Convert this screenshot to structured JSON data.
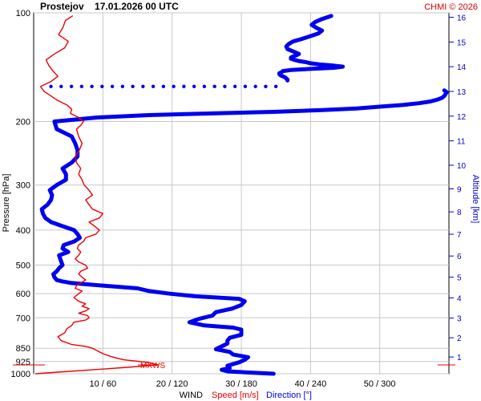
{
  "chart_data": {
    "type": "line",
    "title": "Prostejov    17.01.2026 00 UTC",
    "copyright": "CHMI © 2026",
    "ylabel_left": "Pressure [hPa]",
    "ylabel_right": "Altitude [km]",
    "xlabel_prefix": "WIND",
    "xlabel_speed": "Speed [m/s]",
    "xlabel_direction": "Direction [°]",
    "marker_label": "MXWS",
    "pressure_scale": "log",
    "pressure_range": [
      1000,
      100
    ],
    "pressure_ticks": [
      "100",
      "200",
      "300",
      "400",
      "500",
      "600",
      "700",
      "850",
      "925",
      "1000"
    ],
    "altitude_ticks": [
      "1",
      "2",
      "3",
      "4",
      "5",
      "6",
      "7",
      "8",
      "9",
      "10",
      "11",
      "12",
      "13",
      "14",
      "15",
      "16"
    ],
    "x_ticks": [
      "10 / 60",
      "20 / 120",
      "30 / 180",
      "40 / 240",
      "50 / 300"
    ],
    "speed_range": [
      0,
      60
    ],
    "direction_range": [
      0,
      360
    ],
    "grid": true,
    "colors": {
      "speed": "#ee0000",
      "direction": "#0000ee",
      "altitude_axis": "#0000cc",
      "copyright": "#cc0000",
      "grid": "#c8c8c8"
    },
    "series": [
      {
        "name": "Speed [m/s]",
        "pressure": [
          1000,
          990,
          975,
          960,
          945,
          930,
          915,
          900,
          880,
          860,
          850,
          840,
          830,
          810,
          790,
          770,
          750,
          735,
          720,
          710,
          700,
          690,
          680,
          670,
          660,
          650,
          640,
          630,
          615,
          600,
          590,
          580,
          570,
          560,
          550,
          540,
          530,
          520,
          510,
          500,
          490,
          480,
          470,
          460,
          450,
          440,
          430,
          420,
          410,
          400,
          390,
          380,
          370,
          360,
          350,
          340,
          330,
          320,
          310,
          300,
          290,
          280,
          270,
          260,
          250,
          240,
          230,
          220,
          210,
          205,
          200,
          195,
          190,
          185,
          180,
          175,
          170,
          165,
          160,
          155,
          150,
          145,
          140,
          135,
          130,
          125,
          120,
          115,
          110,
          105,
          102
        ],
        "values": [
          0.3,
          3.5,
          8.5,
          13.5,
          18.0,
          16.5,
          13.0,
          11.5,
          10.0,
          9.0,
          8.5,
          7.5,
          5.5,
          4.0,
          3.5,
          4.5,
          4.8,
          5.5,
          5.8,
          7.5,
          8.0,
          7.8,
          6.5,
          7.5,
          8.0,
          7.0,
          7.5,
          6.5,
          5.8,
          6.5,
          7.0,
          6.0,
          6.2,
          6.8,
          7.5,
          7.0,
          6.5,
          6.8,
          7.8,
          7.5,
          6.5,
          6.0,
          6.5,
          6.8,
          6.3,
          6.5,
          7.2,
          7.5,
          9.0,
          9.5,
          8.8,
          8.0,
          9.5,
          10.0,
          8.5,
          8.0,
          7.5,
          8.5,
          8.0,
          7.3,
          7.0,
          6.5,
          6.8,
          6.2,
          6.0,
          6.6,
          7.0,
          6.5,
          6.2,
          6.8,
          7.2,
          6.5,
          5.3,
          5.5,
          4.8,
          3.5,
          2.5,
          1.5,
          1.0,
          2.5,
          3.5,
          2.8,
          2.2,
          1.8,
          3.0,
          4.5,
          5.0,
          3.6,
          4.2,
          4.6,
          5.6
        ]
      },
      {
        "name": "Direction [°]",
        "pressure": [
          1000,
          992,
          985,
          975,
          965,
          950,
          930,
          915,
          900,
          885,
          870,
          855,
          840,
          825,
          810,
          795,
          780,
          765,
          755,
          745,
          735,
          720,
          705,
          690,
          675,
          660,
          645,
          630,
          620,
          610,
          600,
          590,
          580,
          570,
          565,
          560,
          555,
          550,
          540,
          530,
          520,
          510,
          500,
          490,
          480,
          470,
          460,
          450,
          440,
          430,
          420,
          410,
          400,
          390,
          380,
          370,
          360,
          350,
          340,
          330,
          320,
          310,
          300,
          290,
          280,
          270,
          260,
          250,
          240,
          230,
          220,
          210,
          200,
          195,
          192,
          190,
          188,
          186,
          184,
          182,
          180,
          178,
          176,
          174,
          172,
          170,
          168,
          166,
          164
        ],
        "values": [
          208,
          185,
          168,
          163,
          170,
          168,
          178,
          183,
          186,
          173,
          170,
          158,
          163,
          168,
          168,
          170,
          180,
          180,
          180,
          173,
          148,
          135,
          143,
          155,
          158,
          172,
          180,
          183,
          178,
          140,
          118,
          100,
          90,
          60,
          45,
          32,
          25,
          20,
          18,
          17,
          20,
          22,
          25,
          24,
          23,
          22,
          30,
          25,
          26,
          35,
          40,
          38,
          35,
          25,
          15,
          10,
          8,
          7,
          12,
          15,
          16,
          14,
          20,
          28,
          28,
          25,
          33,
          38,
          38,
          36,
          33,
          20,
          18,
          55,
          100,
          155,
          210,
          250,
          280,
          300,
          320,
          334,
          344,
          350,
          354,
          356,
          357,
          358,
          356
        ]
      },
      {
        "name": "Direction upper segment",
        "pressure": [
          154,
          153,
          152,
          151,
          150,
          149,
          148,
          147,
          146,
          145,
          144,
          143,
          142,
          141,
          140,
          139,
          138,
          137,
          136,
          135,
          134,
          133,
          132,
          131,
          130,
          128,
          126,
          124,
          122,
          120,
          118,
          116,
          114,
          112,
          110,
          108,
          106,
          104,
          102
        ],
        "values": [
          220,
          220,
          219,
          218,
          216,
          214,
          213,
          213,
          215,
          216,
          223,
          240,
          260,
          268,
          260,
          248,
          240,
          236,
          230,
          226,
          223,
          223,
          225,
          228,
          230,
          225,
          220,
          219,
          221,
          225,
          233,
          240,
          247,
          250,
          245,
          241,
          244,
          250,
          258
        ]
      }
    ],
    "gap_pressure": 160,
    "gap_direction_range": [
      15,
      210
    ],
    "gap_dot_count": 23
  }
}
